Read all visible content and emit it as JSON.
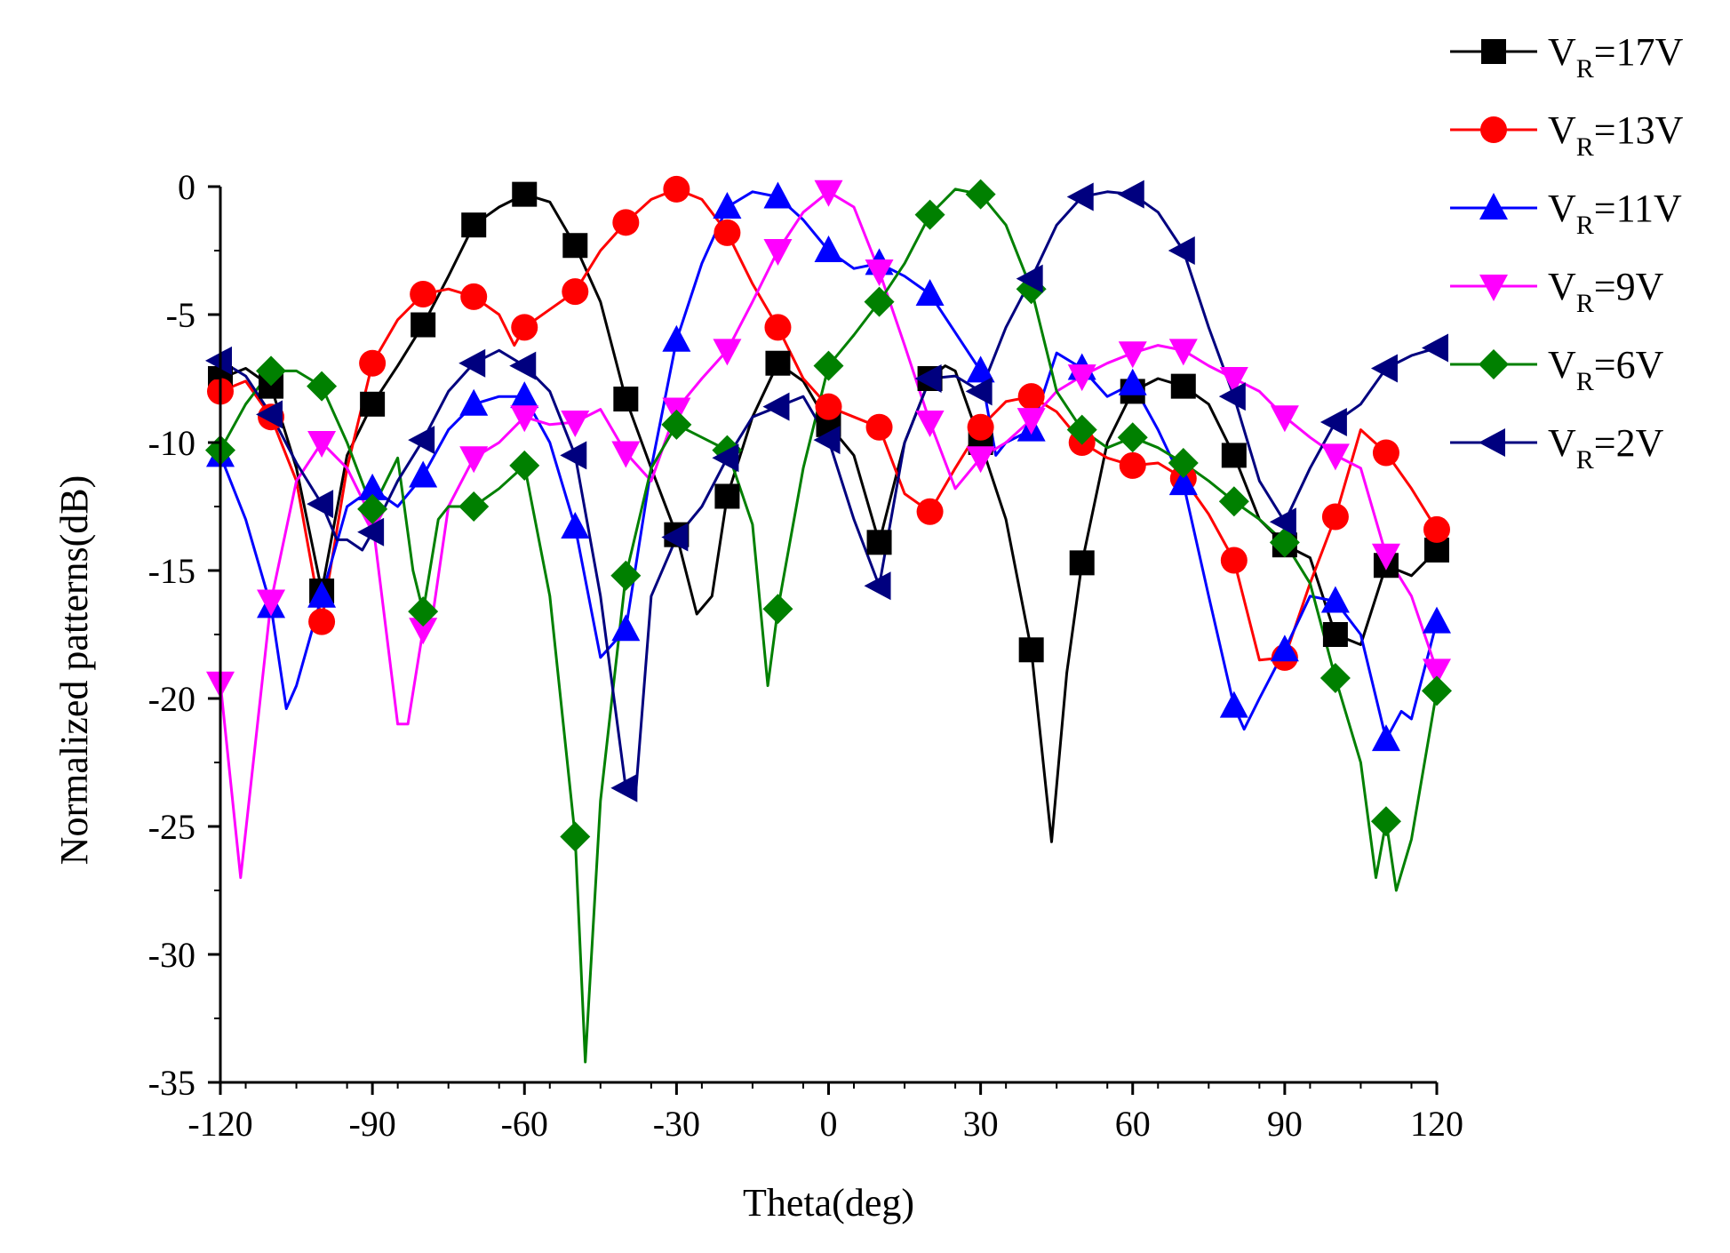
{
  "chart_data": {
    "type": "line",
    "title": "",
    "xlabel": "Theta(deg)",
    "ylabel": "Normalized patterns(dB)",
    "xlim": [
      -120,
      120
    ],
    "ylim": [
      -35,
      0
    ],
    "xticks": [
      -120,
      -90,
      -60,
      -30,
      0,
      30,
      60,
      90,
      120
    ],
    "yticks": [
      0,
      -5,
      -10,
      -15,
      -20,
      -25,
      -30,
      -35
    ],
    "xtick_labels": [
      "-120",
      "-90",
      "-60",
      "-30",
      "0",
      "30",
      "60",
      "90",
      "120"
    ],
    "ytick_labels": [
      "0",
      "-5",
      "-10",
      "-15",
      "-20",
      "-25",
      "-30",
      "-35"
    ],
    "legend_position": "top-right",
    "series": [
      {
        "name": "VR=17V",
        "label_main": "V",
        "label_sub": "R",
        "label_rest": "=17V",
        "color": "#000000",
        "marker": "square",
        "x": [
          -120,
          -115,
          -110,
          -105,
          -100,
          -95,
          -90,
          -85,
          -80,
          -75,
          -70,
          -65,
          -60,
          -55,
          -50,
          -45,
          -40,
          -35,
          -30,
          -26,
          -23,
          -20,
          -15,
          -10,
          -5,
          0,
          5,
          10,
          15,
          20,
          23,
          25,
          30,
          35,
          40,
          44,
          47,
          50,
          55,
          60,
          65,
          70,
          75,
          80,
          85,
          90,
          95,
          100,
          105,
          110,
          115,
          120
        ],
        "y": [
          -7.5,
          -7.1,
          -7.8,
          -11,
          -15.8,
          -10.5,
          -8.5,
          -7,
          -5.4,
          -3.5,
          -1.5,
          -0.8,
          -0.3,
          -0.6,
          -2.3,
          -4.5,
          -8.3,
          -11,
          -13.6,
          -16.7,
          -16,
          -12.1,
          -9,
          -6.9,
          -7.6,
          -9.3,
          -10.5,
          -13.9,
          -10,
          -7.5,
          -7,
          -7.2,
          -10,
          -13,
          -18.1,
          -25.6,
          -19,
          -14.7,
          -10,
          -8,
          -7.5,
          -7.8,
          -8.5,
          -10.5,
          -13,
          -14,
          -14.5,
          -17.5,
          -17.9,
          -14.8,
          -15.2,
          -14.2
        ],
        "markers_x": [
          -120,
          -110,
          -100,
          -90,
          -80,
          -70,
          -60,
          -50,
          -40,
          -30,
          -20,
          -10,
          0,
          10,
          20,
          30,
          40,
          50,
          60,
          70,
          80,
          90,
          100,
          110,
          120
        ]
      },
      {
        "name": "VR=13V",
        "label_main": "V",
        "label_sub": "R",
        "label_rest": "=13V",
        "color": "#ff0000",
        "marker": "circle",
        "x": [
          -120,
          -115,
          -110,
          -105,
          -100,
          -95,
          -90,
          -85,
          -80,
          -75,
          -70,
          -65,
          -62,
          -60,
          -55,
          -50,
          -45,
          -40,
          -35,
          -30,
          -25,
          -20,
          -15,
          -10,
          -5,
          0,
          5,
          10,
          15,
          20,
          25,
          30,
          35,
          40,
          45,
          50,
          55,
          60,
          65,
          70,
          75,
          80,
          85,
          90,
          95,
          100,
          105,
          110,
          115,
          120
        ],
        "y": [
          -8,
          -7.6,
          -9,
          -11.5,
          -17,
          -11,
          -6.9,
          -5.2,
          -4.2,
          -4,
          -4.3,
          -5,
          -6.2,
          -5.5,
          -4.8,
          -4.1,
          -2.5,
          -1.4,
          -0.5,
          -0.1,
          -0.5,
          -1.8,
          -3.8,
          -5.5,
          -7.5,
          -8.6,
          -9,
          -9.4,
          -12,
          -12.7,
          -11,
          -9.4,
          -8.4,
          -8.2,
          -8.8,
          -10,
          -10.6,
          -10.9,
          -10.8,
          -11.4,
          -12.8,
          -14.6,
          -18.5,
          -18.4,
          -15.5,
          -12.9,
          -9.5,
          -10.4,
          -11.8,
          -13.4
        ],
        "markers_x": [
          -120,
          -110,
          -100,
          -90,
          -80,
          -70,
          -60,
          -50,
          -40,
          -30,
          -20,
          -10,
          0,
          10,
          20,
          30,
          40,
          50,
          60,
          70,
          80,
          90,
          100,
          110,
          120
        ]
      },
      {
        "name": "VR=11V",
        "label_main": "V",
        "label_sub": "R",
        "label_rest": "=11V",
        "color": "#0000ff",
        "marker": "triangle-up",
        "x": [
          -120,
          -115,
          -110,
          -107,
          -105,
          -100,
          -95,
          -90,
          -85,
          -80,
          -75,
          -70,
          -65,
          -60,
          -55,
          -50,
          -45,
          -40,
          -35,
          -30,
          -25,
          -20,
          -15,
          -10,
          -5,
          0,
          5,
          10,
          15,
          20,
          25,
          30,
          33,
          35,
          40,
          45,
          50,
          55,
          60,
          65,
          70,
          75,
          80,
          82,
          85,
          90,
          95,
          100,
          105,
          110,
          113,
          115,
          120
        ],
        "y": [
          -10.5,
          -13,
          -16.4,
          -20.4,
          -19.5,
          -16,
          -12.5,
          -11.8,
          -12.5,
          -11.3,
          -9.5,
          -8.5,
          -8.2,
          -8.2,
          -10,
          -13.3,
          -18.4,
          -17.3,
          -11,
          -6,
          -3,
          -0.8,
          -0.2,
          -0.4,
          -1.3,
          -2.5,
          -3.2,
          -3,
          -3.5,
          -4.2,
          -5.7,
          -7.2,
          -10.5,
          -10,
          -9.5,
          -6.5,
          -7.1,
          -8.2,
          -7.7,
          -9.5,
          -11.6,
          -16,
          -20.3,
          -21.2,
          -20,
          -18.1,
          -16,
          -16.2,
          -17.5,
          -21.6,
          -20.5,
          -20.8,
          -17
        ],
        "markers_x": [
          -120,
          -110,
          -100,
          -90,
          -80,
          -70,
          -60,
          -50,
          -40,
          -30,
          -20,
          -10,
          0,
          10,
          20,
          30,
          40,
          50,
          60,
          70,
          80,
          90,
          100,
          110,
          120
        ]
      },
      {
        "name": "VR=9V",
        "label_main": "V",
        "label_sub": "R",
        "label_rest": "=9V",
        "color": "#ff00ff",
        "marker": "triangle-down",
        "x": [
          -120,
          -116,
          -110,
          -105,
          -100,
          -95,
          -90,
          -85,
          -83,
          -80,
          -78,
          -75,
          -70,
          -65,
          -60,
          -55,
          -50,
          -45,
          -40,
          -35,
          -30,
          -25,
          -20,
          -15,
          -10,
          -5,
          0,
          5,
          10,
          15,
          20,
          25,
          30,
          35,
          40,
          45,
          50,
          55,
          60,
          65,
          70,
          75,
          80,
          85,
          90,
          95,
          100,
          105,
          110,
          115,
          120
        ],
        "y": [
          -19.4,
          -27,
          -16.2,
          -11.5,
          -10,
          -11,
          -13,
          -21,
          -21,
          -17.3,
          -16.6,
          -12.5,
          -10.6,
          -10,
          -9,
          -9.3,
          -9.2,
          -8.7,
          -10.4,
          -11.5,
          -8.7,
          -7.5,
          -6.4,
          -4.5,
          -2.5,
          -1,
          -0.2,
          -0.8,
          -3.3,
          -6.2,
          -9.2,
          -11.8,
          -10.6,
          -10,
          -9.1,
          -8,
          -7.4,
          -6.9,
          -6.5,
          -6.2,
          -6.4,
          -7,
          -7.5,
          -8,
          -9,
          -9.8,
          -10.5,
          -11,
          -14.4,
          -16,
          -18.9
        ],
        "markers_x": [
          -120,
          -110,
          -100,
          -90,
          -80,
          -70,
          -60,
          -50,
          -40,
          -30,
          -20,
          -10,
          0,
          10,
          20,
          30,
          40,
          50,
          60,
          70,
          80,
          90,
          100,
          110,
          120
        ]
      },
      {
        "name": "VR=6V",
        "label_main": "V",
        "label_sub": "R",
        "label_rest": "=6V",
        "color": "#008000",
        "marker": "diamond",
        "x": [
          -120,
          -115,
          -110,
          -105,
          -100,
          -95,
          -90,
          -85,
          -82,
          -80,
          -77,
          -75,
          -70,
          -65,
          -60,
          -55,
          -50,
          -48,
          -45,
          -40,
          -35,
          -30,
          -25,
          -20,
          -15,
          -12,
          -10,
          -5,
          0,
          5,
          10,
          15,
          20,
          25,
          30,
          35,
          40,
          45,
          50,
          55,
          60,
          65,
          70,
          75,
          80,
          85,
          90,
          95,
          100,
          105,
          108,
          110,
          112,
          115,
          120
        ],
        "y": [
          -10.3,
          -8.5,
          -7.2,
          -7.2,
          -7.8,
          -10,
          -12.6,
          -10.6,
          -15,
          -16.6,
          -13,
          -12.5,
          -12.5,
          -11.8,
          -10.9,
          -16,
          -25.4,
          -34.2,
          -24,
          -15.2,
          -11,
          -9.3,
          -9.8,
          -10.3,
          -13.2,
          -19.5,
          -16.5,
          -11,
          -7,
          -5.8,
          -4.5,
          -3,
          -1.1,
          -0.1,
          -0.3,
          -1.5,
          -4,
          -8,
          -9.5,
          -10.2,
          -9.8,
          -10.2,
          -10.8,
          -11.5,
          -12.3,
          -13,
          -13.9,
          -15.5,
          -19.2,
          -22.5,
          -27,
          -24.8,
          -27.5,
          -25.5,
          -19.7
        ],
        "markers_x": [
          -120,
          -110,
          -100,
          -90,
          -80,
          -70,
          -60,
          -50,
          -40,
          -30,
          -20,
          -10,
          0,
          10,
          20,
          30,
          40,
          50,
          60,
          70,
          80,
          90,
          100,
          110,
          120
        ]
      },
      {
        "name": "VR=2V",
        "label_main": "V",
        "label_sub": "R",
        "label_rest": "=2V",
        "color": "#00007f",
        "marker": "triangle-left",
        "x": [
          -120,
          -115,
          -110,
          -105,
          -100,
          -97,
          -95,
          -92,
          -90,
          -85,
          -80,
          -75,
          -70,
          -65,
          -60,
          -55,
          -50,
          -45,
          -40,
          -38,
          -35,
          -30,
          -25,
          -20,
          -15,
          -10,
          -5,
          0,
          5,
          10,
          15,
          20,
          25,
          30,
          35,
          40,
          45,
          50,
          55,
          60,
          65,
          70,
          75,
          80,
          85,
          90,
          95,
          100,
          105,
          110,
          115,
          120
        ],
        "y": [
          -6.8,
          -7.4,
          -8.9,
          -10.8,
          -12.4,
          -13.8,
          -13.8,
          -14.2,
          -13.5,
          -11.5,
          -9.9,
          -8,
          -6.9,
          -6.4,
          -7,
          -8,
          -10.5,
          -16,
          -23.5,
          -23.6,
          -16,
          -13.7,
          -12.5,
          -10.6,
          -9,
          -8.6,
          -8.2,
          -9.9,
          -13,
          -15.6,
          -10,
          -7.5,
          -7.4,
          -8,
          -5.5,
          -3.6,
          -1.5,
          -0.4,
          -0.2,
          -0.3,
          -1,
          -2.5,
          -5.5,
          -8.2,
          -11.5,
          -13.1,
          -11,
          -9.2,
          -8.5,
          -7.1,
          -6.6,
          -6.3
        ],
        "markers_x": [
          -120,
          -110,
          -100,
          -90,
          -80,
          -70,
          -60,
          -50,
          -40,
          -30,
          -20,
          -10,
          0,
          10,
          20,
          30,
          40,
          50,
          60,
          70,
          80,
          90,
          100,
          110,
          120
        ]
      }
    ]
  }
}
